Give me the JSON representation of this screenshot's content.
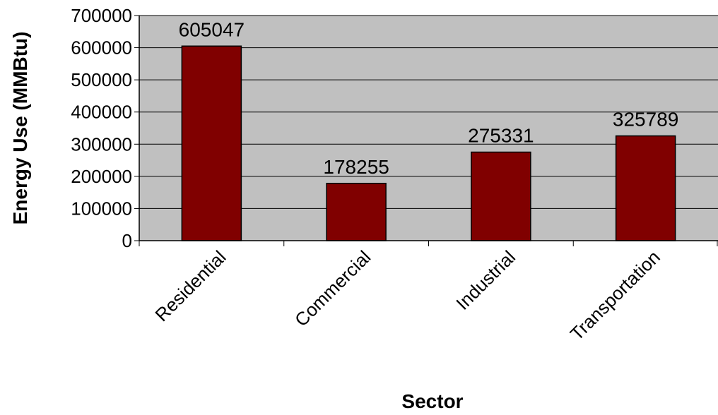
{
  "chart_data": {
    "type": "bar",
    "categories": [
      "Residential",
      "Commercial",
      "Industrial",
      "Transportation"
    ],
    "values": [
      605047,
      178255,
      275331,
      325789
    ],
    "data_labels": [
      "605047",
      "178255",
      "275331",
      "325789"
    ],
    "xlabel": "Sector",
    "ylabel": "Energy Use (MMBtu)",
    "ylim": [
      0,
      700000
    ],
    "yticks": [
      "0",
      "100000",
      "200000",
      "300000",
      "400000",
      "500000",
      "600000",
      "700000"
    ],
    "grid": true,
    "legend": "none",
    "colors": {
      "plot_background": "#c0c0c0",
      "bar_fill": "#800000",
      "bar_stroke": "#000000",
      "grid_line": "#000000"
    }
  }
}
